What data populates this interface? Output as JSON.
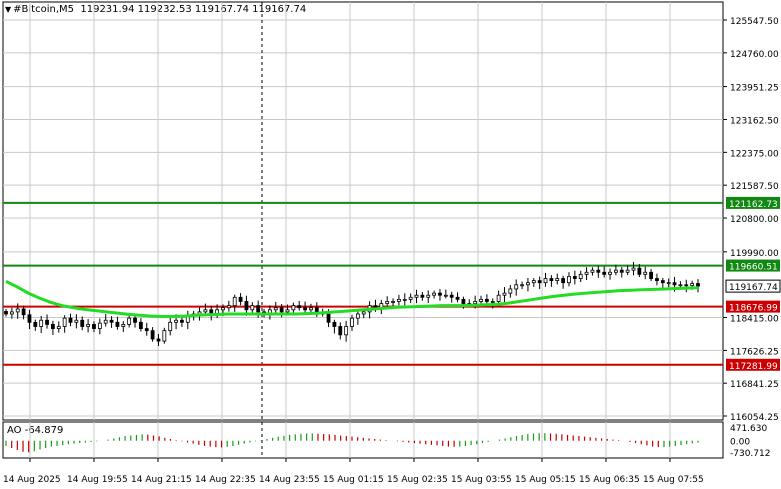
{
  "header": {
    "symbol": "#Bitcoin,M5",
    "ohlc": "119231.94 119232.53 119167.74 119167.74"
  },
  "colors": {
    "grid": "#c8c8c8",
    "frame": "#000000",
    "ma": "#22dd22",
    "support": "#cc0000",
    "resistance": "#118811",
    "ao_up": "#1a9a1a",
    "ao_down": "#c00000",
    "current_price_bg": "#ffffff"
  },
  "price_axis": {
    "ticks": [
      "125547.50",
      "124760.00",
      "123951.25",
      "123162.50",
      "122375.00",
      "121587.50",
      "120800.00",
      "119990.00",
      "118415.00",
      "117626.25",
      "116841.25",
      "116054.25"
    ],
    "tick_values": [
      125547.5,
      124760,
      123951.25,
      123162.5,
      122375,
      121587.5,
      120800,
      119990,
      118415,
      117626.25,
      116841.25,
      116054.25
    ]
  },
  "levels": {
    "resistance_top": {
      "label": "121162.73",
      "value": 121162.73
    },
    "resistance_mid": {
      "label": "119660.51",
      "value": 119660.51
    },
    "current": {
      "label": "119167.74",
      "value": 119167.74
    },
    "support_top": {
      "label": "118676.99",
      "value": 118676.99
    },
    "support_bottom": {
      "label": "117281.99",
      "value": 117281.99
    }
  },
  "ao": {
    "label": "AO -64.879",
    "ticks": [
      "471.630",
      "0.00",
      "-730.712"
    ],
    "tick_values": [
      471.63,
      0,
      -730.712
    ]
  },
  "time_axis": {
    "labels": [
      "14 Aug 2025",
      "14 Aug 19:55",
      "14 Aug 21:15",
      "14 Aug 22:35",
      "14 Aug 23:55",
      "15 Aug 01:15",
      "15 Aug 02:35",
      "15 Aug 03:55",
      "15 Aug 05:15",
      "15 Aug 06:35",
      "15 Aug 07:55"
    ]
  },
  "chart_data": {
    "type": "candlestick",
    "ylim": [
      116054.25,
      125547.5
    ],
    "candle_closes": [
      118500,
      118550,
      118620,
      118480,
      118300,
      118200,
      118350,
      118250,
      118150,
      118200,
      118400,
      118300,
      118350,
      118200,
      118250,
      118150,
      118280,
      118350,
      118300,
      118200,
      118250,
      118400,
      118300,
      118150,
      118100,
      117900,
      117850,
      118100,
      118300,
      118350,
      118300,
      118450,
      118500,
      118550,
      118600,
      118500,
      118600,
      118650,
      118700,
      118900,
      118800,
      118600,
      118700,
      118550,
      118500,
      118600,
      118650,
      118550,
      118600,
      118700,
      118650,
      118600,
      118650,
      118550,
      118500,
      118300,
      118200,
      118000,
      118200,
      118400,
      118500,
      118550,
      118700,
      118650,
      118750,
      118800,
      118800,
      118850,
      118850,
      118900,
      118950,
      118900,
      118950,
      119000,
      118950,
      118950,
      118900,
      118850,
      118750,
      118750,
      118800,
      118850,
      118800,
      118800,
      118950,
      119000,
      119100,
      119200,
      119200,
      119250,
      119300,
      119250,
      119350,
      119300,
      119350,
      119250,
      119400,
      119350,
      119450,
      119500,
      119550,
      119500,
      119450,
      119500,
      119550,
      119500,
      119550,
      119600,
      119450,
      119500,
      119350,
      119300,
      119250,
      119250,
      119200,
      119200,
      119180,
      119230,
      119170
    ],
    "ma_values": [
      119280,
      119150,
      119000,
      118880,
      118780,
      118700,
      118650,
      118610,
      118580,
      118550,
      118520,
      118490,
      118470,
      118450,
      118440,
      118440,
      118450,
      118470,
      118480,
      118490,
      118500,
      118500,
      118500,
      118500,
      118500,
      118500,
      118500,
      118510,
      118520,
      118540,
      118560,
      118580,
      118600,
      118620,
      118640,
      118660,
      118670,
      118680,
      118690,
      118700,
      118700,
      118700,
      118710,
      118720,
      118730,
      118760,
      118800,
      118840,
      118880,
      118920,
      118950,
      118980,
      119000,
      119020,
      119040,
      119060,
      119070,
      119080,
      119090,
      119100,
      119110,
      119120,
      119130
    ],
    "ao_values": [
      -180,
      -250,
      -320,
      -380,
      -400,
      -360,
      -300,
      -250,
      -200,
      -180,
      -150,
      -120,
      -100,
      -80,
      -60,
      -40,
      -20,
      0,
      40,
      80,
      120,
      160,
      180,
      200,
      220,
      210,
      180,
      150,
      100,
      60,
      20,
      -20,
      -60,
      -100,
      -140,
      -180,
      -200,
      -220,
      -230,
      -210,
      -180,
      -140,
      -100,
      -60,
      -20,
      20,
      60,
      100,
      140,
      170,
      200,
      220,
      240,
      250,
      250,
      240,
      230,
      220,
      200,
      180,
      160,
      140,
      120,
      100,
      80,
      60,
      40,
      20,
      0,
      -20,
      -40,
      -60,
      -80,
      -100,
      -120,
      -140,
      -160,
      -180,
      -200,
      -210,
      -200,
      -180,
      -150,
      -120,
      -80,
      -40,
      0,
      40,
      80,
      120,
      160,
      200,
      230,
      250,
      260,
      260,
      250,
      240,
      220,
      200,
      180,
      160,
      140,
      120,
      100,
      80,
      60,
      40,
      20,
      0,
      -40,
      -80,
      -120,
      -160,
      -200,
      -220,
      -220,
      -200,
      -180,
      -150,
      -120,
      -90,
      -64.879
    ]
  }
}
